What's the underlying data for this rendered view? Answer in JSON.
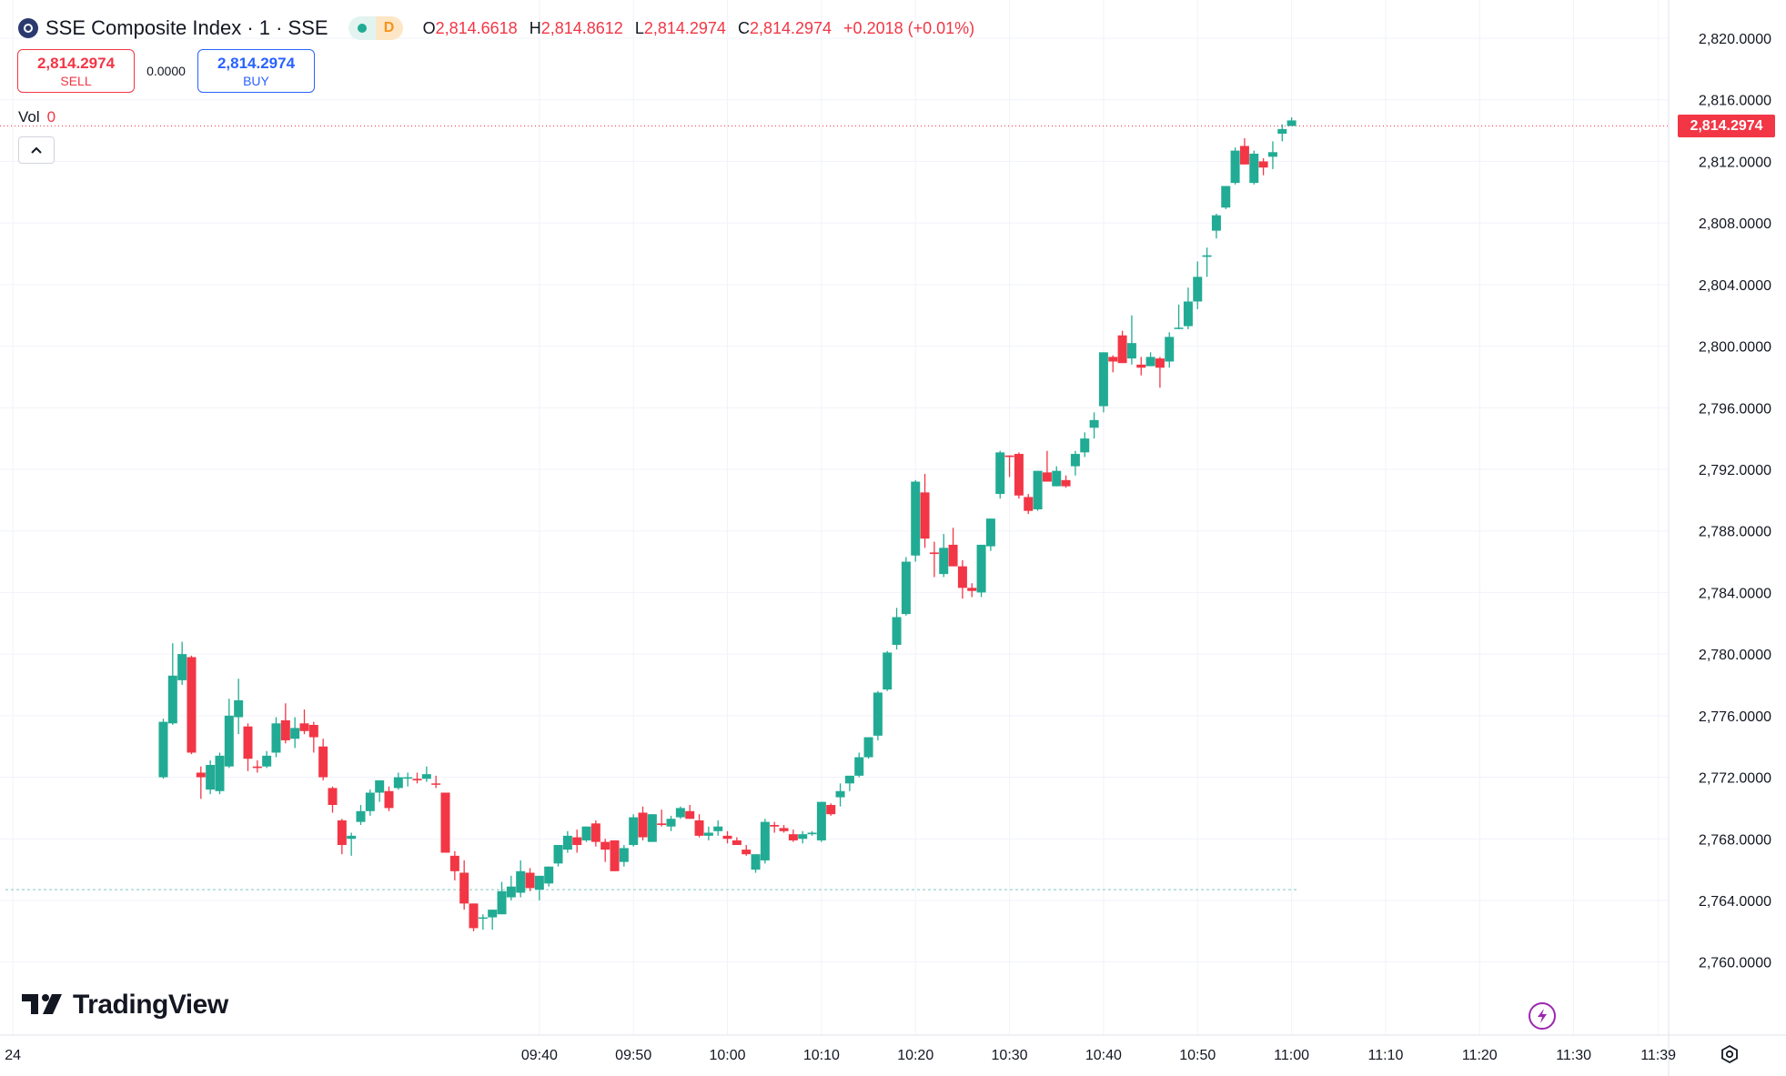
{
  "header": {
    "symbol_title": "SSE Composite Index · 1 · SSE",
    "status_letter": "D",
    "open_label": "O",
    "open_value": "2,814.6618",
    "high_label": "H",
    "high_value": "2,814.8612",
    "low_label": "L",
    "low_value": "2,814.2974",
    "close_label": "C",
    "close_value": "2,814.2974",
    "change": "+0.2018 (+0.01%)"
  },
  "trade": {
    "sell_price": "2,814.2974",
    "sell_label": "SELL",
    "spread": "0.0000",
    "buy_price": "2,814.2974",
    "buy_label": "BUY"
  },
  "volume": {
    "label": "Vol",
    "value": "0"
  },
  "branding": {
    "name": "TradingView"
  },
  "last_price_tag": "2,814.2974",
  "colors": {
    "up": "#22ab94",
    "down": "#f23645",
    "grid": "#f0f3fa",
    "text": "#131722",
    "bolt": "#9c27b0"
  },
  "icons": [
    "symbol-logo-icon",
    "collapse-chevron-icon",
    "lightning-icon",
    "settings-icon"
  ],
  "chart_data": {
    "type": "candlestick",
    "title": "",
    "y_axis_ticks": [
      "2,820.0000",
      "2,816.0000",
      "2,812.0000",
      "2,808.0000",
      "2,804.0000",
      "2,800.0000",
      "2,796.0000",
      "2,792.0000",
      "2,788.0000",
      "2,784.0000",
      "2,780.0000",
      "2,776.0000",
      "2,772.0000",
      "2,768.0000",
      "2,764.0000",
      "2,760.0000"
    ],
    "ylim": [
      2757.5,
      2821.3
    ],
    "x_axis_ticks": [
      "24",
      "09:40",
      "09:50",
      "10:00",
      "10:10",
      "10:20",
      "10:30",
      "10:40",
      "10:50",
      "11:00",
      "11:10",
      "11:20",
      "11:30",
      "11:39"
    ],
    "x_tick_minutes": [
      -16,
      40,
      50,
      60,
      70,
      80,
      90,
      100,
      110,
      120,
      130,
      140,
      150,
      159
    ],
    "xlim_minutes": [
      -16.4,
      160.1
    ],
    "candles_start": "09:30",
    "candles": [
      [
        2772.0,
        2775.8,
        2771.9,
        2775.6
      ],
      [
        2775.5,
        2780.7,
        2775.4,
        2778.6
      ],
      [
        2778.3,
        2780.8,
        2778.0,
        2780.0
      ],
      [
        2779.8,
        2779.9,
        2773.5,
        2773.6
      ],
      [
        2772.3,
        2772.7,
        2770.6,
        2772.0
      ],
      [
        2771.2,
        2773.1,
        2770.9,
        2772.8
      ],
      [
        2771.1,
        2773.6,
        2770.9,
        2773.4
      ],
      [
        2772.7,
        2777.1,
        2772.6,
        2776.0
      ],
      [
        2775.9,
        2778.4,
        2774.8,
        2777.0
      ],
      [
        2775.3,
        2775.5,
        2772.4,
        2773.2
      ],
      [
        2772.6,
        2773.1,
        2772.3,
        2772.7
      ],
      [
        2772.7,
        2773.7,
        2772.6,
        2773.4
      ],
      [
        2773.6,
        2775.9,
        2773.3,
        2775.5
      ],
      [
        2775.7,
        2776.8,
        2774.2,
        2774.4
      ],
      [
        2774.5,
        2775.9,
        2773.9,
        2775.2
      ],
      [
        2775.5,
        2776.4,
        2774.8,
        2775.0
      ],
      [
        2775.4,
        2775.6,
        2773.6,
        2774.6
      ],
      [
        2774.0,
        2774.5,
        2771.8,
        2772.0
      ],
      [
        2771.3,
        2771.4,
        2769.7,
        2770.2
      ],
      [
        2769.2,
        2769.3,
        2767.0,
        2767.6
      ],
      [
        2768.2,
        2768.4,
        2766.9,
        2768.0
      ],
      [
        2769.1,
        2770.2,
        2768.9,
        2769.8
      ],
      [
        2769.8,
        2771.2,
        2769.5,
        2771.0
      ],
      [
        2771.0,
        2771.8,
        2770.4,
        2771.8
      ],
      [
        2770.0,
        2771.4,
        2769.8,
        2771.1
      ],
      [
        2771.3,
        2772.3,
        2771.2,
        2772.0
      ],
      [
        2772.0,
        2772.3,
        2771.4,
        2772.0
      ],
      [
        2771.8,
        2772.3,
        2771.6,
        2771.9
      ],
      [
        2772.2,
        2772.7,
        2771.7,
        2771.9
      ],
      [
        2771.6,
        2772.1,
        2771.3,
        2771.6
      ],
      [
        2771.0,
        2770.8,
        2767.1,
        2767.1
      ],
      [
        2766.9,
        2767.2,
        2765.3,
        2765.9
      ],
      [
        2765.8,
        2766.6,
        2763.4,
        2763.8
      ],
      [
        2763.8,
        2763.8,
        2762.0,
        2762.2
      ],
      [
        2762.9,
        2763.1,
        2762.1,
        2762.9
      ],
      [
        2762.9,
        2763.3,
        2762.1,
        2763.4
      ],
      [
        2763.1,
        2765.2,
        2763.1,
        2764.6
      ],
      [
        2764.2,
        2765.6,
        2764.0,
        2764.9
      ],
      [
        2764.5,
        2766.6,
        2764.2,
        2765.9
      ],
      [
        2765.8,
        2766.1,
        2764.6,
        2764.8
      ],
      [
        2764.7,
        2765.4,
        2764.0,
        2765.6
      ],
      [
        2765.1,
        2766.0,
        2764.9,
        2766.2
      ],
      [
        2766.4,
        2767.6,
        2766.2,
        2767.6
      ],
      [
        2767.3,
        2768.5,
        2767.1,
        2768.2
      ],
      [
        2767.6,
        2768.6,
        2767.1,
        2768.1
      ],
      [
        2767.9,
        2768.8,
        2767.8,
        2768.8
      ],
      [
        2769.0,
        2769.2,
        2767.5,
        2767.8
      ],
      [
        2767.8,
        2768.0,
        2766.5,
        2767.3
      ],
      [
        2767.9,
        2767.7,
        2765.9,
        2765.9
      ],
      [
        2766.5,
        2767.6,
        2766.2,
        2767.4
      ],
      [
        2767.6,
        2769.6,
        2767.5,
        2769.4
      ],
      [
        2769.7,
        2770.1,
        2767.9,
        2768.1
      ],
      [
        2767.8,
        2769.6,
        2767.9,
        2769.6
      ],
      [
        2769.0,
        2769.9,
        2768.8,
        2768.9
      ],
      [
        2768.8,
        2769.5,
        2768.5,
        2769.3
      ],
      [
        2769.4,
        2770.1,
        2769.3,
        2770.0
      ],
      [
        2769.8,
        2770.2,
        2769.3,
        2769.3
      ],
      [
        2769.2,
        2769.6,
        2768.1,
        2768.2
      ],
      [
        2768.2,
        2768.8,
        2767.9,
        2768.4
      ],
      [
        2768.5,
        2769.2,
        2768.2,
        2768.8
      ],
      [
        2768.0,
        2768.5,
        2767.7,
        2768.2
      ],
      [
        2767.9,
        2768.1,
        2767.6,
        2767.6
      ],
      [
        2767.3,
        2767.6,
        2766.9,
        2767.0
      ],
      [
        2766.0,
        2767.0,
        2765.8,
        2767.0
      ],
      [
        2766.6,
        2769.3,
        2766.4,
        2769.1
      ],
      [
        2768.9,
        2769.1,
        2768.4,
        2768.8
      ],
      [
        2768.7,
        2768.9,
        2768.4,
        2768.5
      ],
      [
        2768.3,
        2768.6,
        2767.8,
        2767.9
      ],
      [
        2768.0,
        2768.5,
        2767.7,
        2768.3
      ],
      [
        2768.3,
        2768.5,
        2768.2,
        2768.4
      ],
      [
        2767.9,
        2770.4,
        2767.8,
        2770.4
      ],
      [
        2769.6,
        2770.3,
        2769.5,
        2770.2
      ],
      [
        2770.7,
        2771.6,
        2770.1,
        2771.1
      ],
      [
        2771.6,
        2772.1,
        2771.1,
        2772.1
      ],
      [
        2772.1,
        2773.6,
        2772.0,
        2773.3
      ],
      [
        2773.3,
        2774.6,
        2773.2,
        2774.6
      ],
      [
        2774.7,
        2777.6,
        2774.4,
        2777.5
      ],
      [
        2777.7,
        2780.2,
        2777.6,
        2780.1
      ],
      [
        2780.6,
        2783.0,
        2780.3,
        2782.4
      ],
      [
        2782.6,
        2786.3,
        2782.5,
        2786.0
      ],
      [
        2786.4,
        2791.3,
        2786.0,
        2791.2
      ],
      [
        2790.5,
        2791.7,
        2786.9,
        2787.5
      ],
      [
        2786.6,
        2787.3,
        2785.0,
        2786.5
      ],
      [
        2785.2,
        2787.8,
        2785.0,
        2786.9
      ],
      [
        2787.1,
        2788.2,
        2785.8,
        2785.7
      ],
      [
        2785.7,
        2786.1,
        2783.6,
        2784.3
      ],
      [
        2784.3,
        2784.6,
        2783.7,
        2784.1
      ],
      [
        2784.0,
        2786.6,
        2783.7,
        2787.1
      ],
      [
        2787.0,
        2788.7,
        2786.7,
        2788.8
      ],
      [
        2790.4,
        2793.2,
        2790.1,
        2793.1
      ],
      [
        2792.8,
        2792.9,
        2791.5,
        2792.9
      ],
      [
        2793.0,
        2793.1,
        2790.1,
        2790.3
      ],
      [
        2790.2,
        2790.4,
        2789.1,
        2789.3
      ],
      [
        2789.4,
        2791.8,
        2789.3,
        2791.9
      ],
      [
        2791.8,
        2793.2,
        2791.2,
        2791.2
      ],
      [
        2790.9,
        2792.2,
        2790.9,
        2791.9
      ],
      [
        2791.3,
        2791.6,
        2790.8,
        2790.9
      ],
      [
        2792.2,
        2793.2,
        2791.6,
        2793.0
      ],
      [
        2793.1,
        2794.4,
        2792.8,
        2794.0
      ],
      [
        2794.7,
        2795.7,
        2794.0,
        2795.2
      ],
      [
        2796.1,
        2799.6,
        2795.7,
        2799.6
      ],
      [
        2799.0,
        2799.4,
        2798.3,
        2799.3
      ],
      [
        2800.7,
        2801.0,
        2798.9,
        2798.9
      ],
      [
        2800.2,
        2802.0,
        2798.8,
        2799.2
      ],
      [
        2798.8,
        2799.3,
        2798.1,
        2798.6
      ],
      [
        2798.7,
        2799.6,
        2798.8,
        2799.3
      ],
      [
        2799.2,
        2799.3,
        2797.3,
        2798.6
      ],
      [
        2800.6,
        2800.9,
        2798.6,
        2799.0
      ],
      [
        2801.2,
        2802.7,
        2801.1,
        2801.2
      ],
      [
        2801.3,
        2803.8,
        2801.1,
        2802.9
      ],
      [
        2802.9,
        2805.5,
        2802.4,
        2804.5
      ],
      [
        2805.8,
        2806.4,
        2804.5,
        2805.9
      ],
      [
        2807.5,
        2808.6,
        2807.0,
        2808.5
      ],
      [
        2809.0,
        2810.4,
        2808.9,
        2810.4
      ],
      [
        2810.6,
        2812.9,
        2810.5,
        2812.7
      ],
      [
        2813.0,
        2813.5,
        2811.9,
        2811.8
      ],
      [
        2810.6,
        2812.7,
        2810.5,
        2812.5
      ],
      [
        2811.6,
        2812.2,
        2811.1,
        2812.0
      ],
      [
        2812.3,
        2813.3,
        2811.5,
        2812.6
      ],
      [
        2813.8,
        2814.4,
        2813.3,
        2814.1
      ],
      [
        2814.66,
        2814.86,
        2814.3,
        2814.3
      ]
    ],
    "colored_by": "bar direction (up = close above previous close)",
    "reference_line": 2764.7,
    "last_price_line": 2814.2974
  }
}
